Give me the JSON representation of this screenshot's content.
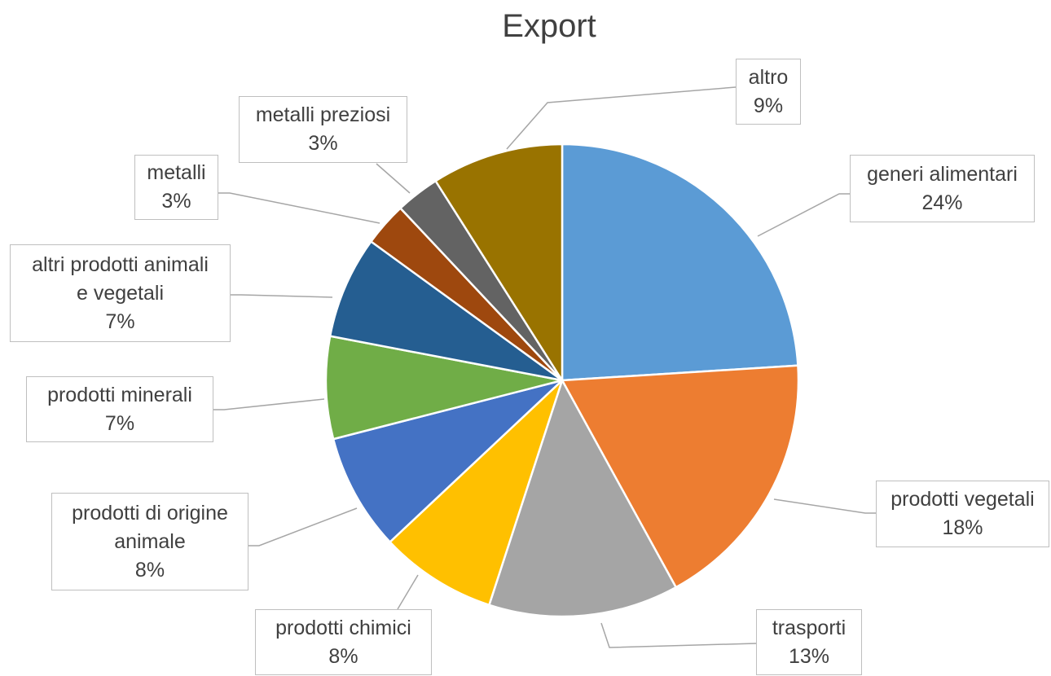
{
  "chart_data": {
    "type": "pie",
    "title": "Export",
    "slices": [
      {
        "label": "generi alimentari",
        "value": 24,
        "percent_label": "24%",
        "color": "#5B9BD5"
      },
      {
        "label": "prodotti vegetali",
        "value": 18,
        "percent_label": "18%",
        "color": "#ED7D31"
      },
      {
        "label": "trasporti",
        "value": 13,
        "percent_label": "13%",
        "color": "#A5A5A5"
      },
      {
        "label": "prodotti chimici",
        "value": 8,
        "percent_label": "8%",
        "color": "#FFC000"
      },
      {
        "label": "prodotti di origine animale",
        "value": 8,
        "percent_label": "8%",
        "color": "#4472C4"
      },
      {
        "label": "prodotti minerali",
        "value": 7,
        "percent_label": "7%",
        "color": "#70AD47"
      },
      {
        "label": "altri prodotti animali e vegetali",
        "value": 7,
        "percent_label": "7%",
        "color": "#255E91"
      },
      {
        "label": "metalli",
        "value": 3,
        "percent_label": "3%",
        "color": "#9E480E"
      },
      {
        "label": "metalli preziosi",
        "value": 3,
        "percent_label": "3%",
        "color": "#636363"
      },
      {
        "label": "altro",
        "value": 9,
        "percent_label": "9%",
        "color": "#997300"
      }
    ]
  }
}
